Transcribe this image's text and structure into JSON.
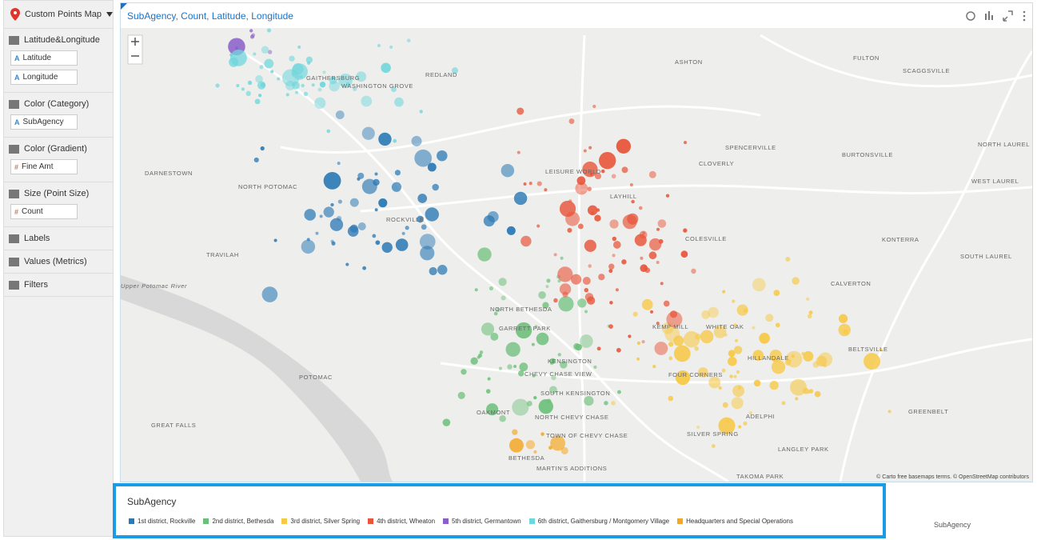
{
  "sidebar": {
    "chart_type": "Custom Points Map",
    "sections": [
      {
        "title": "Latitude&Longitude",
        "fields": [
          {
            "icon": "A",
            "name": "Latitude"
          },
          {
            "icon": "A",
            "name": "Longitude"
          }
        ]
      },
      {
        "title": "Color (Category)",
        "fields": [
          {
            "icon": "A",
            "name": "SubAgency"
          }
        ]
      },
      {
        "title": "Color (Gradient)",
        "fields": [
          {
            "icon": "#",
            "name": "Fine Amt"
          }
        ]
      },
      {
        "title": "Size (Point Size)",
        "fields": [
          {
            "icon": "#",
            "name": "Count"
          }
        ]
      },
      {
        "title": "Labels"
      },
      {
        "title": "Values (Metrics)"
      },
      {
        "title": "Filters"
      }
    ]
  },
  "map": {
    "title": "SubAgency, Count, Latitude, Longitude",
    "attribution": "© Carto free basemaps terms. © OpenStreetMap contributors",
    "place_labels": [
      "GAITHERSBURG",
      "WASHINGTON GROVE",
      "REDLAND",
      "ASHTON",
      "FULTON",
      "SCAGGSVILLE",
      "DARNESTOWN",
      "NORTH POTOMAC",
      "LEISURE WORLD",
      "SPENCERVILLE",
      "CLOVERLY",
      "BURTONSVILLE",
      "NORTH LAUREL",
      "WEST LAUREL",
      "ROCKVILLE",
      "LAYHILL",
      "COLESVILLE",
      "KONTERRA",
      "SOUTH LAUREL",
      "TRAVILAH",
      "NORTH BETHESDA",
      "GARRETT PARK",
      "KEMP MILL",
      "WHITE OAK",
      "CALVERTON",
      "BELTSVILLE",
      "KENSINGTON",
      "CHEVY CHASE VIEW",
      "POTOMAC",
      "SOUTH KENSINGTON",
      "HILLANDALE",
      "FOUR CORNERS",
      "GREAT FALLS",
      "OAKMONT",
      "NORTH CHEVY CHASE",
      "ADELPHI",
      "SILVER SPRING",
      "GREENBELT",
      "TOWN OF CHEVY CHASE",
      "LANGLEY PARK",
      "BETHESDA",
      "MARTIN'S ADDITIONS",
      "TAKOMA PARK",
      "Upper Potomac River"
    ]
  },
  "legend": {
    "title": "SubAgency",
    "items": [
      {
        "name": "1st district, Rockville",
        "color": "#2b79b5"
      },
      {
        "name": "2nd district, Bethesda",
        "color": "#6cbf7a"
      },
      {
        "name": "3rd district, Silver Spring",
        "color": "#f7c948"
      },
      {
        "name": "4th district, Wheaton",
        "color": "#e8553a"
      },
      {
        "name": "5th district, Germantown",
        "color": "#8a5fc8"
      },
      {
        "name": "6th district, Gaithersburg / Montgomery Village",
        "color": "#6fd6dc"
      },
      {
        "name": "Headquarters and Special Operations",
        "color": "#f5a623"
      }
    ]
  },
  "footer_label": "SubAgency"
}
